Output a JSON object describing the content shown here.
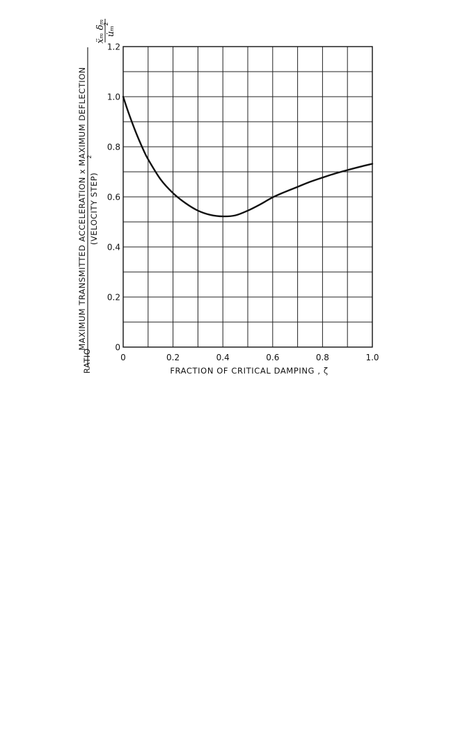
{
  "chart_data": {
    "type": "line",
    "xlabel": "FRACTION OF CRITICAL DAMPING , ζ",
    "ylabel": {
      "prefix": "RATIO",
      "numerator": "MAXIMUM TRANSMITTED ACCELERATION x MAXIMUM DEFLECTION",
      "denominator": "(VELOCITY STEP)",
      "denominator_exp": "2",
      "formula_num": "ẍₘ δₘ",
      "formula_den": "u̇ₘ",
      "formula_den_exp": "2"
    },
    "xlim": [
      0,
      1.0
    ],
    "ylim": [
      0,
      1.2
    ],
    "xticks": [
      "0",
      "0.2",
      "0.4",
      "0.6",
      "0.8",
      "1.0"
    ],
    "yticks": [
      "0",
      "0.2",
      "0.4",
      "0.6",
      "0.8",
      "1.0",
      "1.2"
    ],
    "grid": true,
    "grid_step_x": 0.1,
    "grid_step_y": 0.1,
    "series": [
      {
        "x": [
          0,
          0.02,
          0.05,
          0.08,
          0.1,
          0.15,
          0.2,
          0.25,
          0.3,
          0.35,
          0.4,
          0.45,
          0.5,
          0.55,
          0.6,
          0.65,
          0.7,
          0.75,
          0.8,
          0.85,
          0.9,
          0.95,
          1.0
        ],
        "y": [
          1.0,
          0.94,
          0.86,
          0.79,
          0.75,
          0.67,
          0.615,
          0.575,
          0.545,
          0.528,
          0.522,
          0.526,
          0.545,
          0.57,
          0.598,
          0.62,
          0.64,
          0.66,
          0.677,
          0.693,
          0.707,
          0.72,
          0.732
        ]
      }
    ]
  }
}
